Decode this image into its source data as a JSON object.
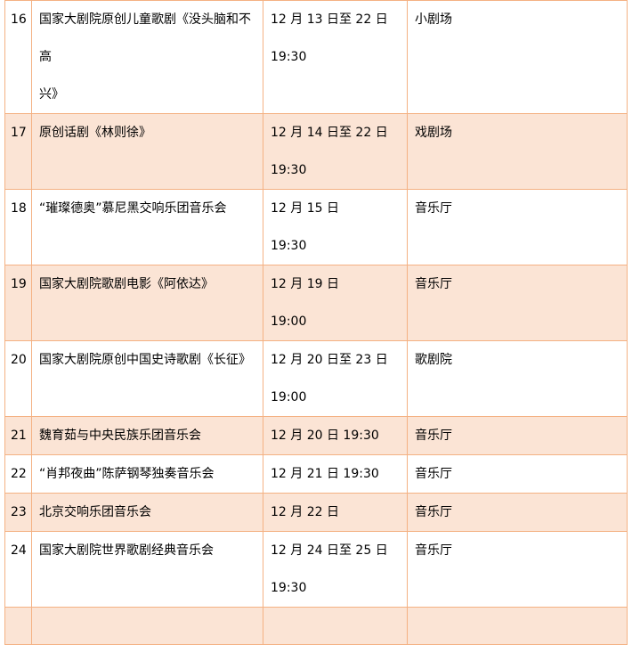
{
  "rows": [
    {
      "no": "16",
      "title": "国家大剧院原创儿童歌剧《没头脑和不高",
      "title2": "兴》",
      "date": "12 月 13 日至 22 日",
      "time": "19:30",
      "venue": "小剧场"
    },
    {
      "no": "17",
      "title": "原创话剧《林则徐》",
      "title2": "",
      "date": "12 月 14 日至 22 日",
      "time": "19:30",
      "venue": "戏剧场"
    },
    {
      "no": "18",
      "title": "“璀璨德奥”慕尼黑交响乐团音乐会",
      "title2": "",
      "date": "12 月 15 日",
      "time": "19:30",
      "venue": "音乐厅"
    },
    {
      "no": "19",
      "title": "国家大剧院歌剧电影《阿依达》",
      "title2": "",
      "date": "12 月 19 日",
      "time": "19:00",
      "venue": "音乐厅"
    },
    {
      "no": "20",
      "title": "国家大剧院原创中国史诗歌剧《长征》",
      "title2": "",
      "date": "12 月 20 日至 23 日",
      "time": "19:00",
      "venue": "歌剧院"
    },
    {
      "no": "21",
      "title": "魏育茹与中央民族乐团音乐会",
      "title2": "",
      "date": "12 月 20 日 19:30",
      "time": "",
      "venue": "音乐厅"
    },
    {
      "no": "22",
      "title": "“肖邦夜曲”陈萨钢琴独奏音乐会",
      "title2": "",
      "date": "12 月 21 日 19:30",
      "time": "",
      "venue": "音乐厅"
    },
    {
      "no": "23",
      "title": "北京交响乐团音乐会",
      "title2": "",
      "date": "12 月 22 日",
      "time": "",
      "venue": "音乐厅"
    },
    {
      "no": "24",
      "title": "国家大剧院世界歌剧经典音乐会",
      "title2": "",
      "date": "12 月 24 日至 25 日",
      "time": "19:30",
      "venue": "音乐厅"
    }
  ],
  "colors": {
    "border": "#f4b183",
    "shade": "#fbe4d5"
  }
}
